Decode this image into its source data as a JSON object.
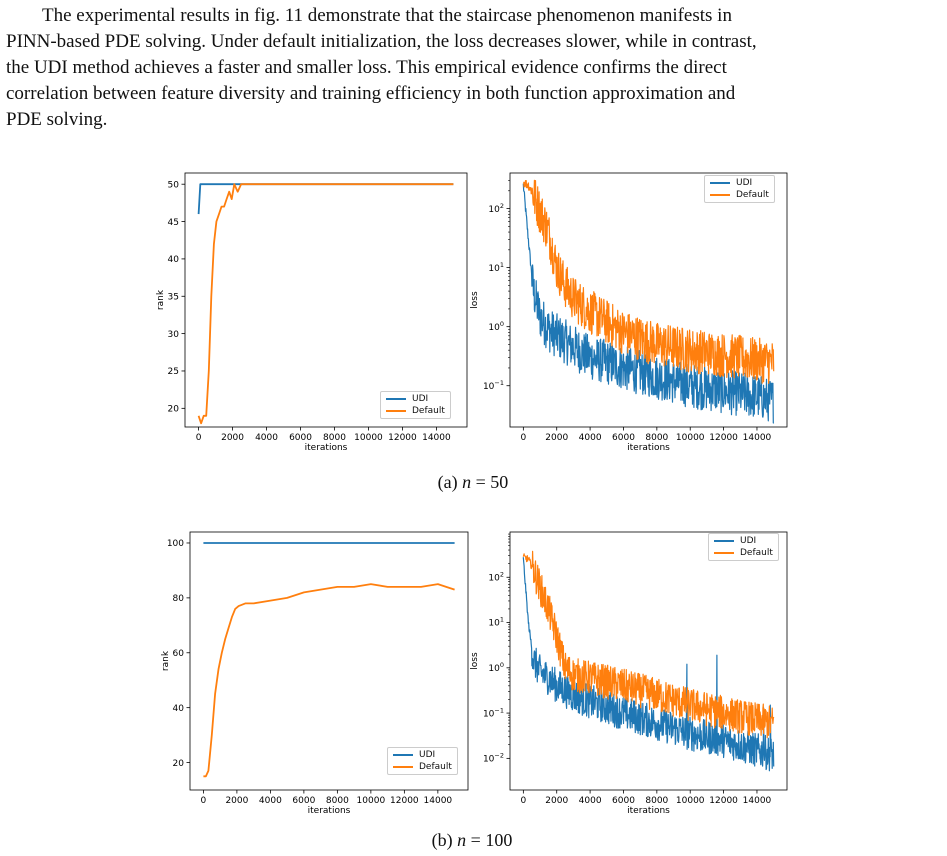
{
  "paragraph": {
    "lines": [
      "The experimental results in fig. 11 demonstrate that the staircase phenomenon manifests in",
      "PINN-based PDE solving. Under default initialization, the loss decreases slower, while in contrast,",
      "the UDI method achieves a faster and smaller loss. This empirical evidence confirms the direct",
      "correlation between feature diversity and training efficiency in both function approximation and",
      "PDE solving."
    ]
  },
  "colors": {
    "udi": "#1f77b4",
    "default": "#ff7f0e"
  },
  "captions": {
    "a": {
      "prefix": "(a) ",
      "var": "n",
      "rest": " = 50"
    },
    "b": {
      "prefix": "(b) ",
      "var": "n",
      "rest": " = 100"
    }
  },
  "chart_data": [
    {
      "type": "line",
      "panel": "a-left",
      "xlabel": "iterations",
      "ylabel": "rank",
      "xlim": [
        -800,
        15800
      ],
      "ylim": [
        17.5,
        51.5
      ],
      "xticks": [
        0,
        2000,
        4000,
        6000,
        8000,
        10000,
        12000,
        14000
      ],
      "yticks": [
        20,
        25,
        30,
        35,
        40,
        45,
        50
      ],
      "legend_position": "bottom-right",
      "series": [
        {
          "name": "UDI",
          "x": [
            0,
            100,
            250,
            15000
          ],
          "y": [
            46,
            50,
            50,
            50
          ]
        },
        {
          "name": "Default",
          "x": [
            0,
            150,
            300,
            450,
            600,
            750,
            900,
            1050,
            1200,
            1350,
            1500,
            1650,
            1800,
            1950,
            2100,
            2300,
            2500,
            3000,
            4000,
            6000,
            8000,
            10000,
            12000,
            14000,
            15000
          ],
          "y": [
            19,
            18,
            19,
            19,
            25,
            35,
            42,
            45,
            46,
            47,
            47,
            48,
            49,
            48,
            50,
            49,
            50,
            50,
            50,
            50,
            50,
            50,
            50,
            50,
            50
          ]
        }
      ]
    },
    {
      "type": "line",
      "panel": "a-right",
      "xlabel": "iterations",
      "ylabel": "loss",
      "yscale": "log",
      "xlim": [
        -800,
        15800
      ],
      "ylim": [
        0.02,
        400
      ],
      "xticks": [
        0,
        2000,
        4000,
        6000,
        8000,
        10000,
        12000,
        14000
      ],
      "yticks": [
        0.1,
        1,
        10,
        100
      ],
      "ytick_labels": [
        "10^-1",
        "10^0",
        "10^1",
        "10^2"
      ],
      "legend_position": "top-right",
      "series": [
        {
          "name": "UDI",
          "x": [
            0,
            300,
            600,
            1000,
            1500,
            2000,
            3000,
            4000,
            5000,
            6000,
            8000,
            10000,
            12000,
            14000,
            15000
          ],
          "y": [
            250,
            30,
            4,
            1.5,
            0.9,
            0.7,
            0.45,
            0.3,
            0.25,
            0.2,
            0.14,
            0.1,
            0.08,
            0.065,
            0.055
          ]
        },
        {
          "name": "Default",
          "x": [
            0,
            300,
            600,
            1000,
            1500,
            2000,
            2500,
            3000,
            4000,
            5000,
            6000,
            8000,
            10000,
            12000,
            14000,
            15000
          ],
          "y": [
            280,
            250,
            170,
            90,
            40,
            10,
            5,
            3,
            1.8,
            1.2,
            0.8,
            0.5,
            0.4,
            0.33,
            0.27,
            0.25
          ]
        }
      ]
    },
    {
      "type": "line",
      "panel": "b-left",
      "xlabel": "iterations",
      "ylabel": "rank",
      "xlim": [
        -800,
        15800
      ],
      "ylim": [
        10,
        104
      ],
      "xticks": [
        0,
        2000,
        4000,
        6000,
        8000,
        10000,
        12000,
        14000
      ],
      "yticks": [
        20,
        40,
        60,
        80,
        100
      ],
      "legend_position": "bottom-right",
      "series": [
        {
          "name": "UDI",
          "x": [
            0,
            15000
          ],
          "y": [
            100,
            100
          ]
        },
        {
          "name": "Default",
          "x": [
            0,
            150,
            300,
            500,
            700,
            900,
            1100,
            1300,
            1500,
            1700,
            1900,
            2100,
            2500,
            3000,
            4000,
            5000,
            6000,
            7000,
            8000,
            9000,
            10000,
            11000,
            12000,
            13000,
            14000,
            14500,
            15000
          ],
          "y": [
            15,
            15,
            17,
            30,
            45,
            54,
            60,
            65,
            69,
            73,
            76,
            77,
            78,
            78,
            79,
            80,
            82,
            83,
            84,
            84,
            85,
            84,
            84,
            84,
            85,
            84,
            83
          ]
        }
      ]
    },
    {
      "type": "line",
      "panel": "b-right",
      "xlabel": "iterations",
      "ylabel": "loss",
      "yscale": "log",
      "xlim": [
        -800,
        15800
      ],
      "ylim": [
        0.002,
        1000
      ],
      "xticks": [
        0,
        2000,
        4000,
        6000,
        8000,
        10000,
        12000,
        14000
      ],
      "yticks": [
        0.01,
        0.1,
        1,
        10,
        100
      ],
      "ytick_labels": [
        "10^-2",
        "10^-1",
        "10^0",
        "10^1",
        "10^2"
      ],
      "legend_position": "top-right",
      "series": [
        {
          "name": "UDI",
          "x": [
            0,
            300,
            600,
            1000,
            1500,
            2000,
            3000,
            4000,
            6000,
            8000,
            10000,
            12000,
            14000,
            15000
          ],
          "y": [
            250,
            10,
            1.5,
            0.8,
            0.6,
            0.4,
            0.25,
            0.18,
            0.1,
            0.06,
            0.035,
            0.025,
            0.015,
            0.012
          ]
        },
        {
          "name": "Default",
          "x": [
            0,
            300,
            600,
            1000,
            1500,
            2000,
            2500,
            3000,
            4000,
            6000,
            8000,
            10000,
            12000,
            14000,
            15000
          ],
          "y": [
            280,
            250,
            150,
            60,
            20,
            5,
            1,
            0.7,
            0.6,
            0.4,
            0.25,
            0.15,
            0.1,
            0.07,
            0.06
          ]
        }
      ]
    }
  ]
}
